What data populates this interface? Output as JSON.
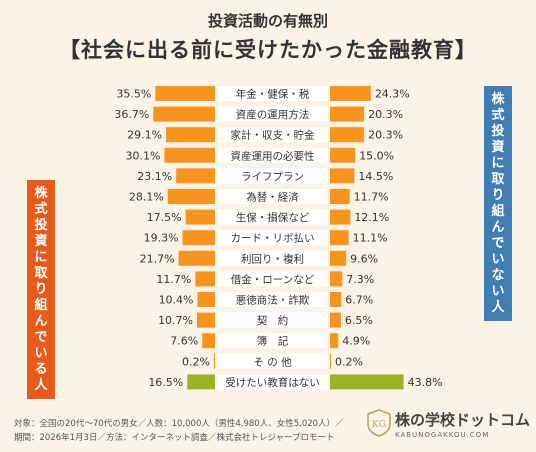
{
  "title": {
    "line1": "投資活動の有無別",
    "line2": "【社会に出る前に受けたかった金融教育】"
  },
  "side_labels": {
    "left": "株式投資に取り組んでいる人",
    "right": "株式投資に取り組んでいない人"
  },
  "footer": {
    "line1": "対象：全国の20代〜70代の男女／人数：10,000人（男性4,980人、女性5,020人）／",
    "line2": "期間：2026年1月3日／方法：インターネット調査／株式会社トレジャープロモート"
  },
  "logo": {
    "name": "株の学校ドットコム",
    "sub": "KABUNOGAKKOU.COM",
    "mark_text": "KG"
  },
  "colors": {
    "background": "#fbf4e6",
    "bar_orange": "#f7941d",
    "bar_green": "#9bb326",
    "left_label_bg": "#e85a1c",
    "right_label_bg": "#3f7db3",
    "category_row_bg": "#ffffff"
  },
  "chart_data": {
    "type": "bar",
    "orientation": "horizontal-butterfly",
    "categories": [
      "年金・健保・税",
      "資産の運用方法",
      "家計・収支・貯金",
      "資産運用の必要性",
      "ライフプラン",
      "為替・経済",
      "生保・損保など",
      "カード・リボ払い",
      "利回り・複利",
      "借金・ローンなど",
      "悪徳商法・詐欺",
      "契　約",
      "簿　記",
      "そ の 他",
      "受けたい教育はない"
    ],
    "series": [
      {
        "name": "株式投資に取り組んでいる人",
        "side": "left",
        "values": [
          35.5,
          36.7,
          29.1,
          30.1,
          23.1,
          28.1,
          17.5,
          19.3,
          21.7,
          11.7,
          10.4,
          10.7,
          7.6,
          0.2,
          16.5
        ],
        "labels": [
          "35.5%",
          "36.7%",
          "29.1%",
          "30.1%",
          "23.1%",
          "28.1%",
          "17.5%",
          "19.3%",
          "21.7%",
          "11.7%",
          "10.4%",
          "10.7%",
          "7.6%",
          "0.2%",
          "16.5%"
        ]
      },
      {
        "name": "株式投資に取り組んでいない人",
        "side": "right",
        "values": [
          24.3,
          20.3,
          20.3,
          15.0,
          14.5,
          11.7,
          12.1,
          11.1,
          9.6,
          7.3,
          6.7,
          6.5,
          4.9,
          0.2,
          43.8
        ],
        "labels": [
          "24.3%",
          "20.3%",
          "20.3%",
          "15.0%",
          "14.5%",
          "11.7%",
          "12.1%",
          "11.1%",
          "9.6%",
          "7.3%",
          "6.7%",
          "6.5%",
          "4.9%",
          "0.2%",
          "43.8%"
        ]
      }
    ],
    "highlight_last_category": true,
    "unit": "%"
  }
}
